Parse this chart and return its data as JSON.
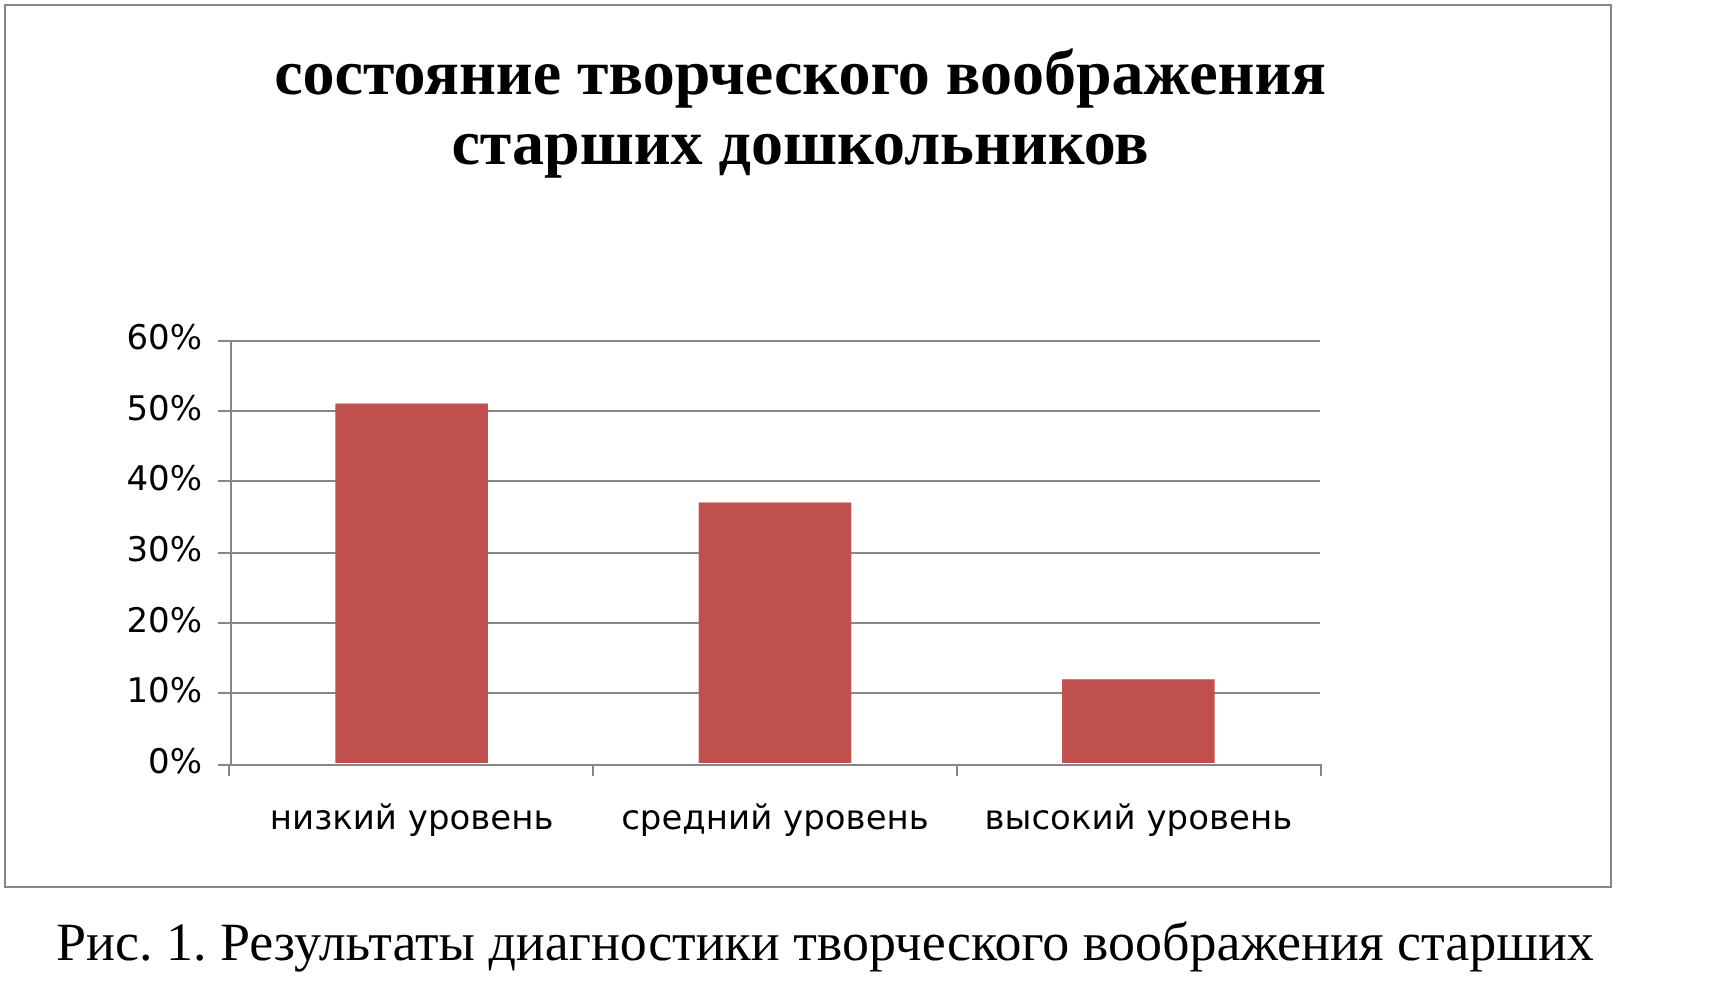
{
  "chart_data": {
    "type": "bar",
    "title": "состояние творческого воображения старших дошкольников",
    "categories": [
      "низкий уровень",
      "средний уровень",
      "высокий уровень"
    ],
    "values": [
      51,
      37,
      12
    ],
    "color": "#c0504d",
    "ylim": [
      0,
      60
    ],
    "yticks": [
      {
        "value": 0,
        "label": "0%"
      },
      {
        "value": 10,
        "label": "10%"
      },
      {
        "value": 20,
        "label": "20%"
      },
      {
        "value": 30,
        "label": "30%"
      },
      {
        "value": 40,
        "label": "40%"
      },
      {
        "value": 50,
        "label": "50%"
      },
      {
        "value": 60,
        "label": "60%"
      }
    ],
    "grid": "y",
    "annotations": [
      "Рис. 1. Результаты диагностики творческого воображения старших"
    ]
  }
}
